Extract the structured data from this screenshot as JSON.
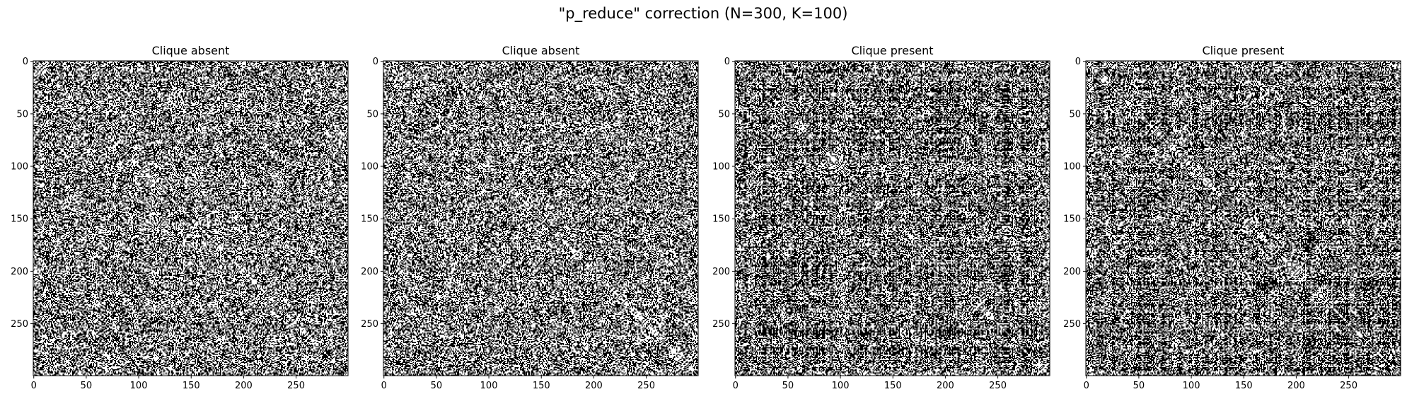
{
  "figure": {
    "suptitle": "\"p_reduce\" correction (N=300, K=100)"
  },
  "chart_data": [
    {
      "type": "heatmap",
      "title": "Clique absent",
      "matrix_size": [
        300,
        300
      ],
      "colormap": "binary (0 = white, 1 = black)",
      "xlim": [
        0,
        299
      ],
      "ylim": [
        299,
        0
      ],
      "x_ticks": [
        0,
        50,
        100,
        150,
        200,
        250
      ],
      "y_ticks": [
        0,
        50,
        100,
        150,
        200,
        250
      ],
      "edge_density": 0.5,
      "clique_present": false,
      "grid": false
    },
    {
      "type": "heatmap",
      "title": "Clique absent",
      "matrix_size": [
        300,
        300
      ],
      "colormap": "binary (0 = white, 1 = black)",
      "xlim": [
        0,
        299
      ],
      "ylim": [
        299,
        0
      ],
      "x_ticks": [
        0,
        50,
        100,
        150,
        200,
        250
      ],
      "y_ticks": [
        0,
        50,
        100,
        150,
        200,
        250
      ],
      "edge_density": 0.5,
      "clique_present": false,
      "grid": false
    },
    {
      "type": "heatmap",
      "title": "Clique present",
      "matrix_size": [
        300,
        300
      ],
      "colormap": "binary (0 = white, 1 = black)",
      "xlim": [
        0,
        299
      ],
      "ylim": [
        299,
        0
      ],
      "x_ticks": [
        0,
        50,
        100,
        150,
        200,
        250
      ],
      "y_ticks": [
        0,
        50,
        100,
        150,
        200,
        250
      ],
      "edge_density": 0.5,
      "clique_present": true,
      "clique_size": 100,
      "grid": false
    },
    {
      "type": "heatmap",
      "title": "Clique present",
      "matrix_size": [
        300,
        300
      ],
      "colormap": "binary (0 = white, 1 = black)",
      "xlim": [
        0,
        299
      ],
      "ylim": [
        299,
        0
      ],
      "x_ticks": [
        0,
        50,
        100,
        150,
        200,
        250
      ],
      "y_ticks": [
        0,
        50,
        100,
        150,
        200,
        250
      ],
      "edge_density": 0.5,
      "clique_present": true,
      "clique_size": 100,
      "grid": false
    }
  ]
}
